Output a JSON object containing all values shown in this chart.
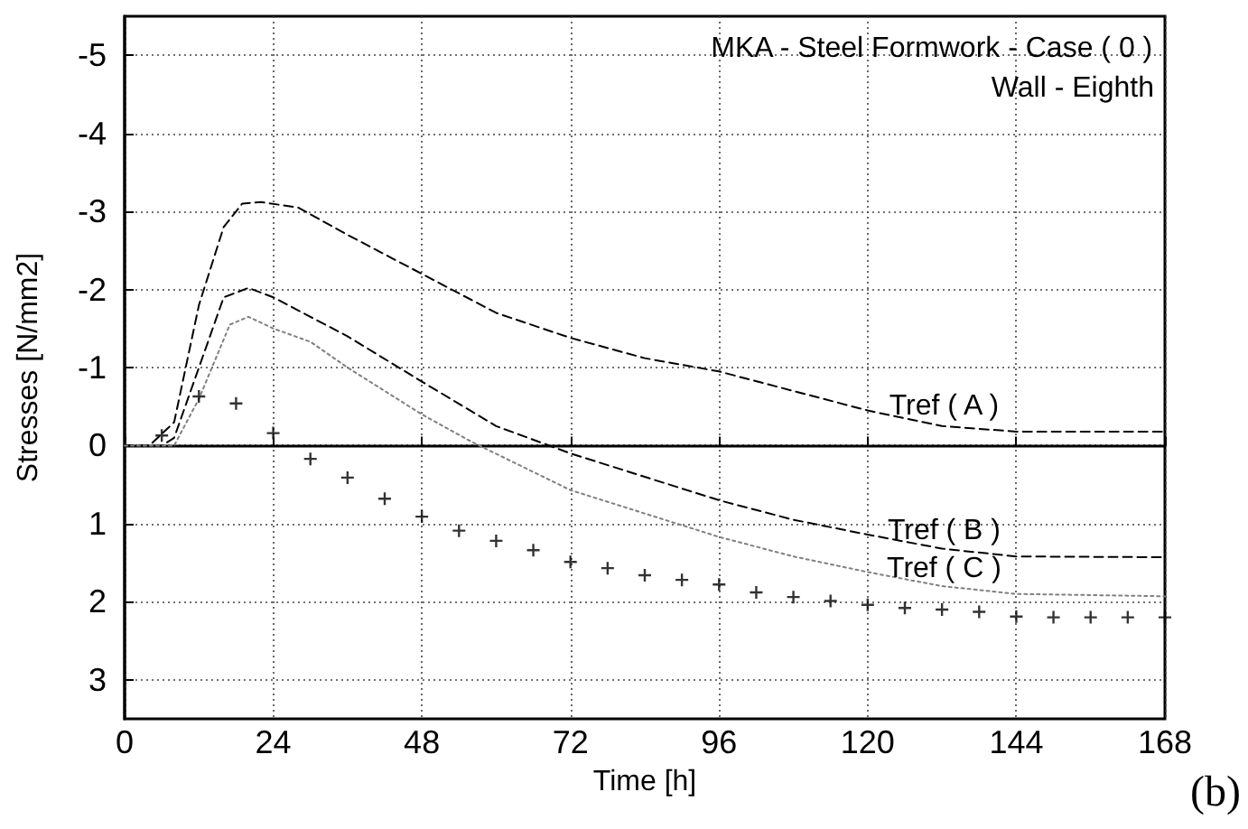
{
  "chart_data": {
    "type": "line",
    "title": "MKA - Steel Formwork - Case ( 0 )",
    "subtitle": "Wall - Eighth",
    "xlabel": "Time [h]",
    "ylabel": "Stresses [N/mm2]",
    "annotations": [
      "(b)"
    ],
    "xlim": [
      0,
      168
    ],
    "xticks": [
      0,
      24,
      48,
      72,
      96,
      120,
      144,
      168
    ],
    "ylim": [
      3.5,
      -5.5
    ],
    "yticks": [
      -5,
      -4,
      -3,
      -2,
      -1,
      0,
      1,
      2,
      3
    ],
    "grid": true,
    "legend": false,
    "marker": "none",
    "series": [
      {
        "name": "Tref ( A )",
        "color": "#000000",
        "line_style": "dashed",
        "x": [
          0,
          4,
          8,
          12,
          16,
          19,
          22,
          28,
          36,
          48,
          60,
          72,
          84,
          96,
          108,
          120,
          132,
          144,
          168
        ],
        "values": [
          0,
          0,
          -0.3,
          -1.8,
          -2.8,
          -3.1,
          -3.12,
          -3.05,
          -2.7,
          -2.2,
          -1.7,
          -1.38,
          -1.12,
          -0.95,
          -0.7,
          -0.45,
          -0.25,
          -0.18,
          -0.18
        ]
      },
      {
        "name": "Tref ( B )",
        "color": "#000000",
        "line_style": "dashed",
        "x": [
          0,
          6,
          8,
          12,
          16,
          20,
          24,
          30,
          36,
          48,
          60,
          72,
          84,
          96,
          108,
          120,
          132,
          144,
          168
        ],
        "values": [
          0,
          0,
          -0.1,
          -1.0,
          -1.9,
          -2.02,
          -1.9,
          -1.65,
          -1.4,
          -0.82,
          -0.25,
          0.1,
          0.4,
          0.7,
          0.95,
          1.14,
          1.32,
          1.42,
          1.43
        ]
      },
      {
        "name": "Tref ( C )",
        "color": "#808080",
        "line_style": "dotted",
        "x": [
          0,
          6,
          8,
          12,
          17,
          20,
          24,
          30,
          36,
          48,
          56,
          72,
          84,
          96,
          108,
          120,
          132,
          144,
          168
        ],
        "values": [
          0,
          0,
          0,
          -0.6,
          -1.55,
          -1.65,
          -1.5,
          -1.33,
          -1.0,
          -0.4,
          -0.05,
          0.57,
          0.87,
          1.17,
          1.42,
          1.62,
          1.8,
          1.9,
          1.93
        ]
      },
      {
        "type": "scatter",
        "marker": "cross",
        "color": "#000000",
        "x": [
          6,
          12,
          18,
          24,
          30,
          36,
          42,
          48,
          54,
          60,
          66,
          72,
          78,
          84,
          90,
          96,
          102,
          108,
          114,
          120,
          126,
          132,
          138,
          144,
          150,
          156,
          162,
          168
        ],
        "values": [
          -0.13,
          -0.63,
          -0.54,
          -0.16,
          0.17,
          0.41,
          0.68,
          0.91,
          1.09,
          1.22,
          1.34,
          1.49,
          1.57,
          1.66,
          1.72,
          1.78,
          1.88,
          1.94,
          1.99,
          2.04,
          2.08,
          2.1,
          2.13,
          2.19,
          2.2,
          2.2,
          2.2,
          2.2
        ]
      }
    ]
  }
}
